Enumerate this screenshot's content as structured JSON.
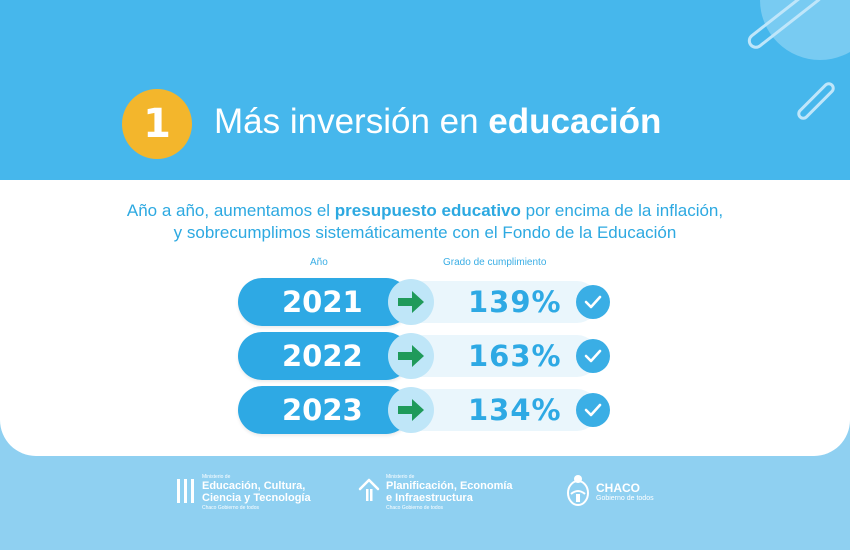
{
  "header": {
    "number": "1",
    "title_regular": "Más inversión en ",
    "title_bold": "educación",
    "accent_color": "#f3b62c",
    "background_color": "#46b7ec"
  },
  "subtitle": {
    "line1_part1": "Año a año, aumentamos el ",
    "line1_bold": "presupuesto educativo",
    "line1_part2": " por encima de la inflación,",
    "line2": "y sobrecumplimos sistemáticamente con el Fondo de la Educación"
  },
  "table": {
    "col_year": "Año",
    "col_compliance": "Grado de cumplimiento",
    "rows": [
      {
        "year": "2021",
        "percent": "139%",
        "arrow_icon": "green-arrow-right",
        "check_icon": "check-circle"
      },
      {
        "year": "2022",
        "percent": "163%",
        "arrow_icon": "green-arrow-right",
        "check_icon": "check-circle"
      },
      {
        "year": "2023",
        "percent": "134%",
        "arrow_icon": "green-arrow-right",
        "check_icon": "check-circle"
      }
    ]
  },
  "footer": {
    "logo1": {
      "small": "Ministerio de",
      "line1": "Educación, Cultura,",
      "line2": "Ciencia y Tecnología",
      "sub": "Chaco Gobierno de todos"
    },
    "logo2": {
      "small": "Ministerio de",
      "line1": "Planificación, Economía",
      "line2": "e Infraestructura",
      "sub": "Chaco Gobierno de todos"
    },
    "logo3": {
      "line1": "CHACO",
      "sub": "Gobierno de todos"
    }
  }
}
